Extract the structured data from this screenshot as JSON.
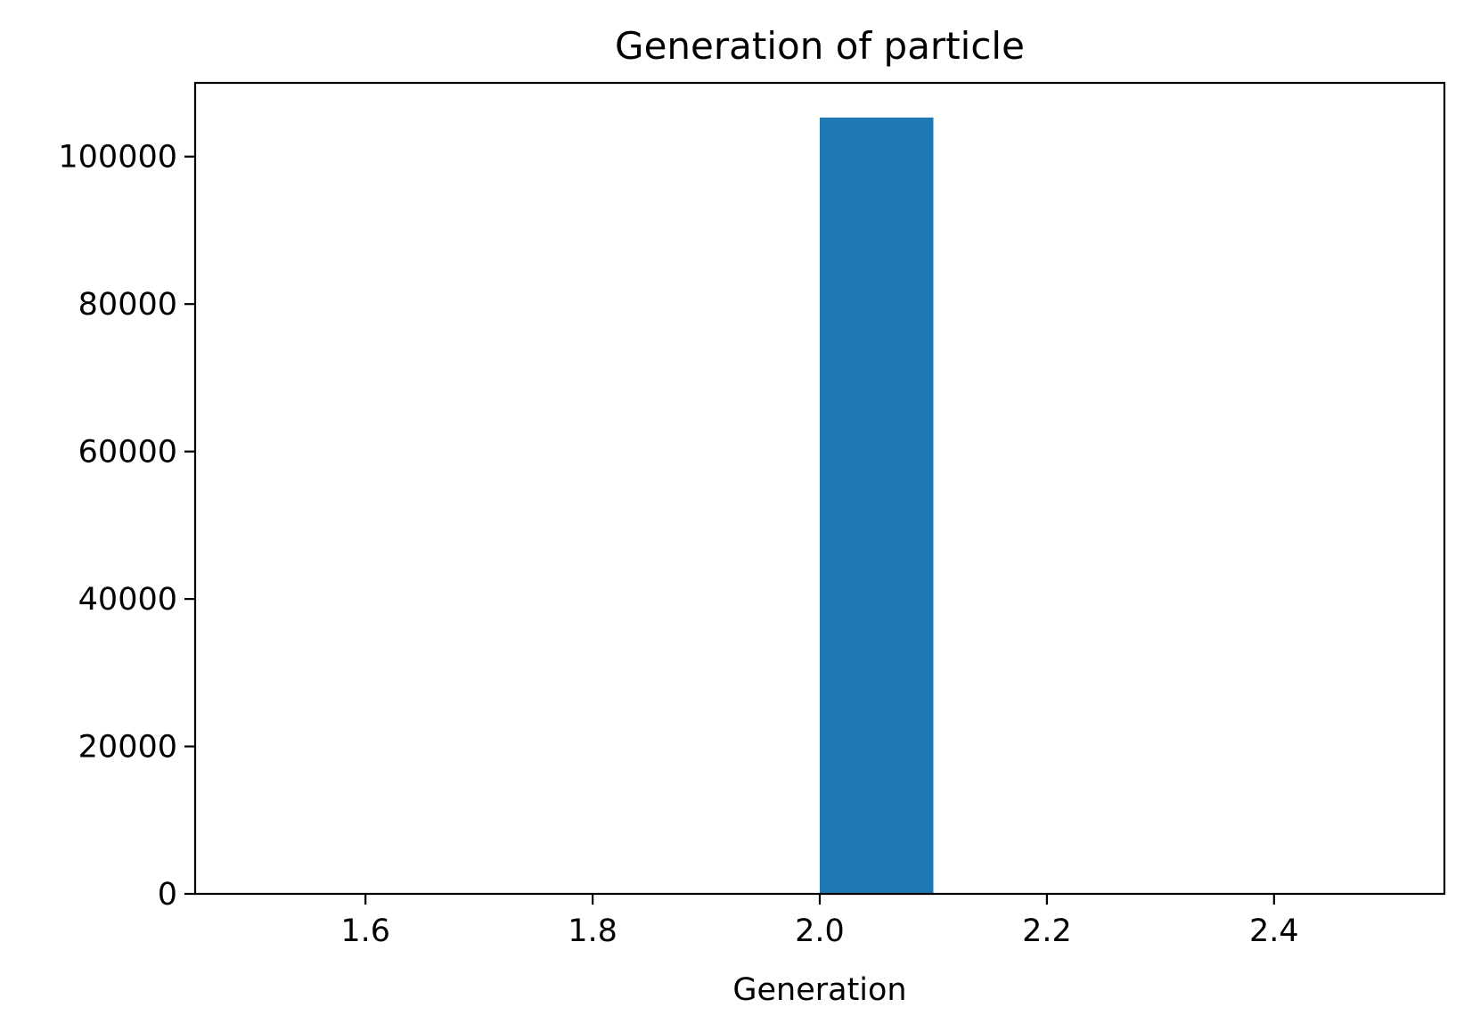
{
  "chart_data": {
    "type": "bar",
    "title": "Generation of particle",
    "xlabel": "Generation",
    "ylabel": "",
    "xlim": [
      1.45,
      2.55
    ],
    "ylim": [
      0,
      110000
    ],
    "xticks": [
      1.6,
      1.8,
      2.0,
      2.2,
      2.4
    ],
    "xtick_labels": [
      "1.6",
      "1.8",
      "2.0",
      "2.2",
      "2.4"
    ],
    "yticks": [
      0,
      20000,
      40000,
      60000,
      80000,
      100000
    ],
    "ytick_labels": [
      "0",
      "20000",
      "40000",
      "60000",
      "80000",
      "100000"
    ],
    "grid": false,
    "bars": [
      {
        "x_start": 2.0,
        "x_end": 2.1,
        "value": 105300
      }
    ],
    "colors": {
      "bar": "#1f77b4",
      "axes": "#000000",
      "background": "#ffffff"
    }
  }
}
